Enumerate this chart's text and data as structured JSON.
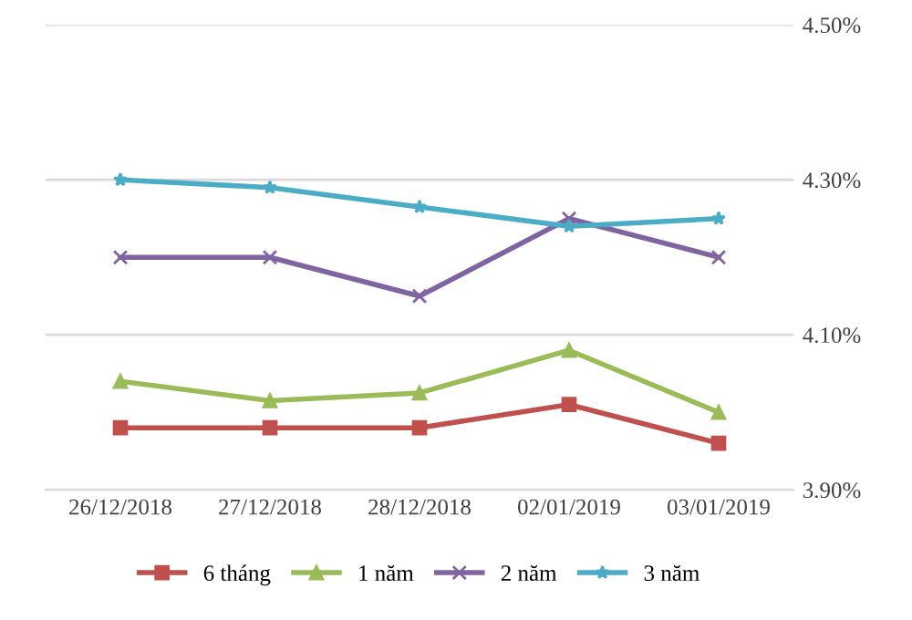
{
  "chart_data": {
    "type": "line",
    "categories": [
      "26/12/2018",
      "27/12/2018",
      "28/12/2018",
      "02/01/2019",
      "03/01/2019"
    ],
    "series": [
      {
        "name": "6 tháng",
        "color": "#c0504d",
        "marker": "square",
        "values": [
          3.98,
          3.98,
          3.98,
          4.01,
          3.96
        ]
      },
      {
        "name": "1 năm",
        "color": "#9bbb59",
        "marker": "triangle",
        "values": [
          4.04,
          4.015,
          4.025,
          4.08,
          4.0
        ]
      },
      {
        "name": "2 năm",
        "color": "#8064a2",
        "marker": "cross",
        "values": [
          4.2,
          4.2,
          4.15,
          4.25,
          4.2
        ]
      },
      {
        "name": "3 năm",
        "color": "#4bacc6",
        "marker": "star",
        "values": [
          4.3,
          4.29,
          4.265,
          4.24,
          4.25
        ]
      }
    ],
    "ylim": [
      3.9,
      4.5
    ],
    "yticks": [
      {
        "value": 3.9,
        "label": "3.90%"
      },
      {
        "value": 4.1,
        "label": "4.10%"
      },
      {
        "value": 4.3,
        "label": "4.30%"
      },
      {
        "value": 4.5,
        "label": "4.50%"
      }
    ],
    "grid": "y",
    "legend": "bottom"
  }
}
